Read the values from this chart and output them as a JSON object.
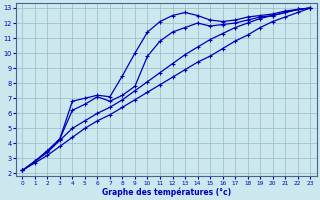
{
  "xlabel": "Graphe des températures (°c)",
  "xlim": [
    -0.5,
    23.5
  ],
  "ylim": [
    1.8,
    13.3
  ],
  "xticks": [
    0,
    1,
    2,
    3,
    4,
    5,
    6,
    7,
    8,
    9,
    10,
    11,
    12,
    13,
    14,
    15,
    16,
    17,
    18,
    19,
    20,
    21,
    22,
    23
  ],
  "yticks": [
    2,
    3,
    4,
    5,
    6,
    7,
    8,
    9,
    10,
    11,
    12,
    13
  ],
  "bg_color": "#cce8ee",
  "line_color": "#0000bb",
  "grid_color": "#99bbc4",
  "curve1_x": [
    0,
    1,
    2,
    3,
    4,
    5,
    6,
    7,
    8,
    9,
    10,
    11,
    12,
    13,
    14,
    15,
    16,
    17,
    18,
    19,
    20,
    21,
    22,
    23
  ],
  "curve1_y": [
    2.2,
    2.7,
    3.2,
    3.8,
    4.4,
    5.0,
    5.5,
    5.9,
    6.4,
    6.9,
    7.4,
    7.9,
    8.4,
    8.9,
    9.4,
    9.8,
    10.3,
    10.8,
    11.2,
    11.7,
    12.1,
    12.4,
    12.7,
    13.0
  ],
  "curve2_x": [
    0,
    1,
    2,
    3,
    4,
    5,
    6,
    7,
    8,
    9,
    10,
    11,
    12,
    13,
    14,
    15,
    16,
    17,
    18,
    19,
    20,
    21,
    22,
    23
  ],
  "curve2_y": [
    2.2,
    2.8,
    3.4,
    4.2,
    5.0,
    5.5,
    6.0,
    6.4,
    6.9,
    7.5,
    8.1,
    8.7,
    9.3,
    9.9,
    10.4,
    10.9,
    11.3,
    11.7,
    12.0,
    12.3,
    12.5,
    12.7,
    12.9,
    13.0
  ],
  "curve3_x": [
    0,
    1,
    2,
    3,
    4,
    5,
    6,
    7,
    8,
    9,
    10,
    11,
    12,
    13,
    14,
    15,
    16,
    17,
    18,
    19,
    20,
    21,
    22,
    23
  ],
  "curve3_y": [
    2.2,
    2.8,
    3.5,
    4.3,
    6.2,
    6.6,
    7.1,
    6.8,
    7.2,
    7.8,
    9.8,
    10.8,
    11.4,
    11.7,
    12.0,
    11.8,
    11.9,
    12.0,
    12.2,
    12.4,
    12.5,
    12.7,
    12.9,
    13.0
  ],
  "curve4_x": [
    0,
    1,
    2,
    3,
    4,
    5,
    6,
    7,
    8,
    9,
    10,
    11,
    12,
    13,
    14,
    15,
    16,
    17,
    18,
    19,
    20,
    21,
    22,
    23
  ],
  "curve4_y": [
    2.2,
    2.8,
    3.5,
    4.3,
    6.8,
    7.0,
    7.2,
    7.1,
    8.5,
    10.0,
    11.4,
    12.1,
    12.5,
    12.7,
    12.5,
    12.2,
    12.1,
    12.2,
    12.4,
    12.5,
    12.6,
    12.8,
    12.9,
    13.0
  ]
}
